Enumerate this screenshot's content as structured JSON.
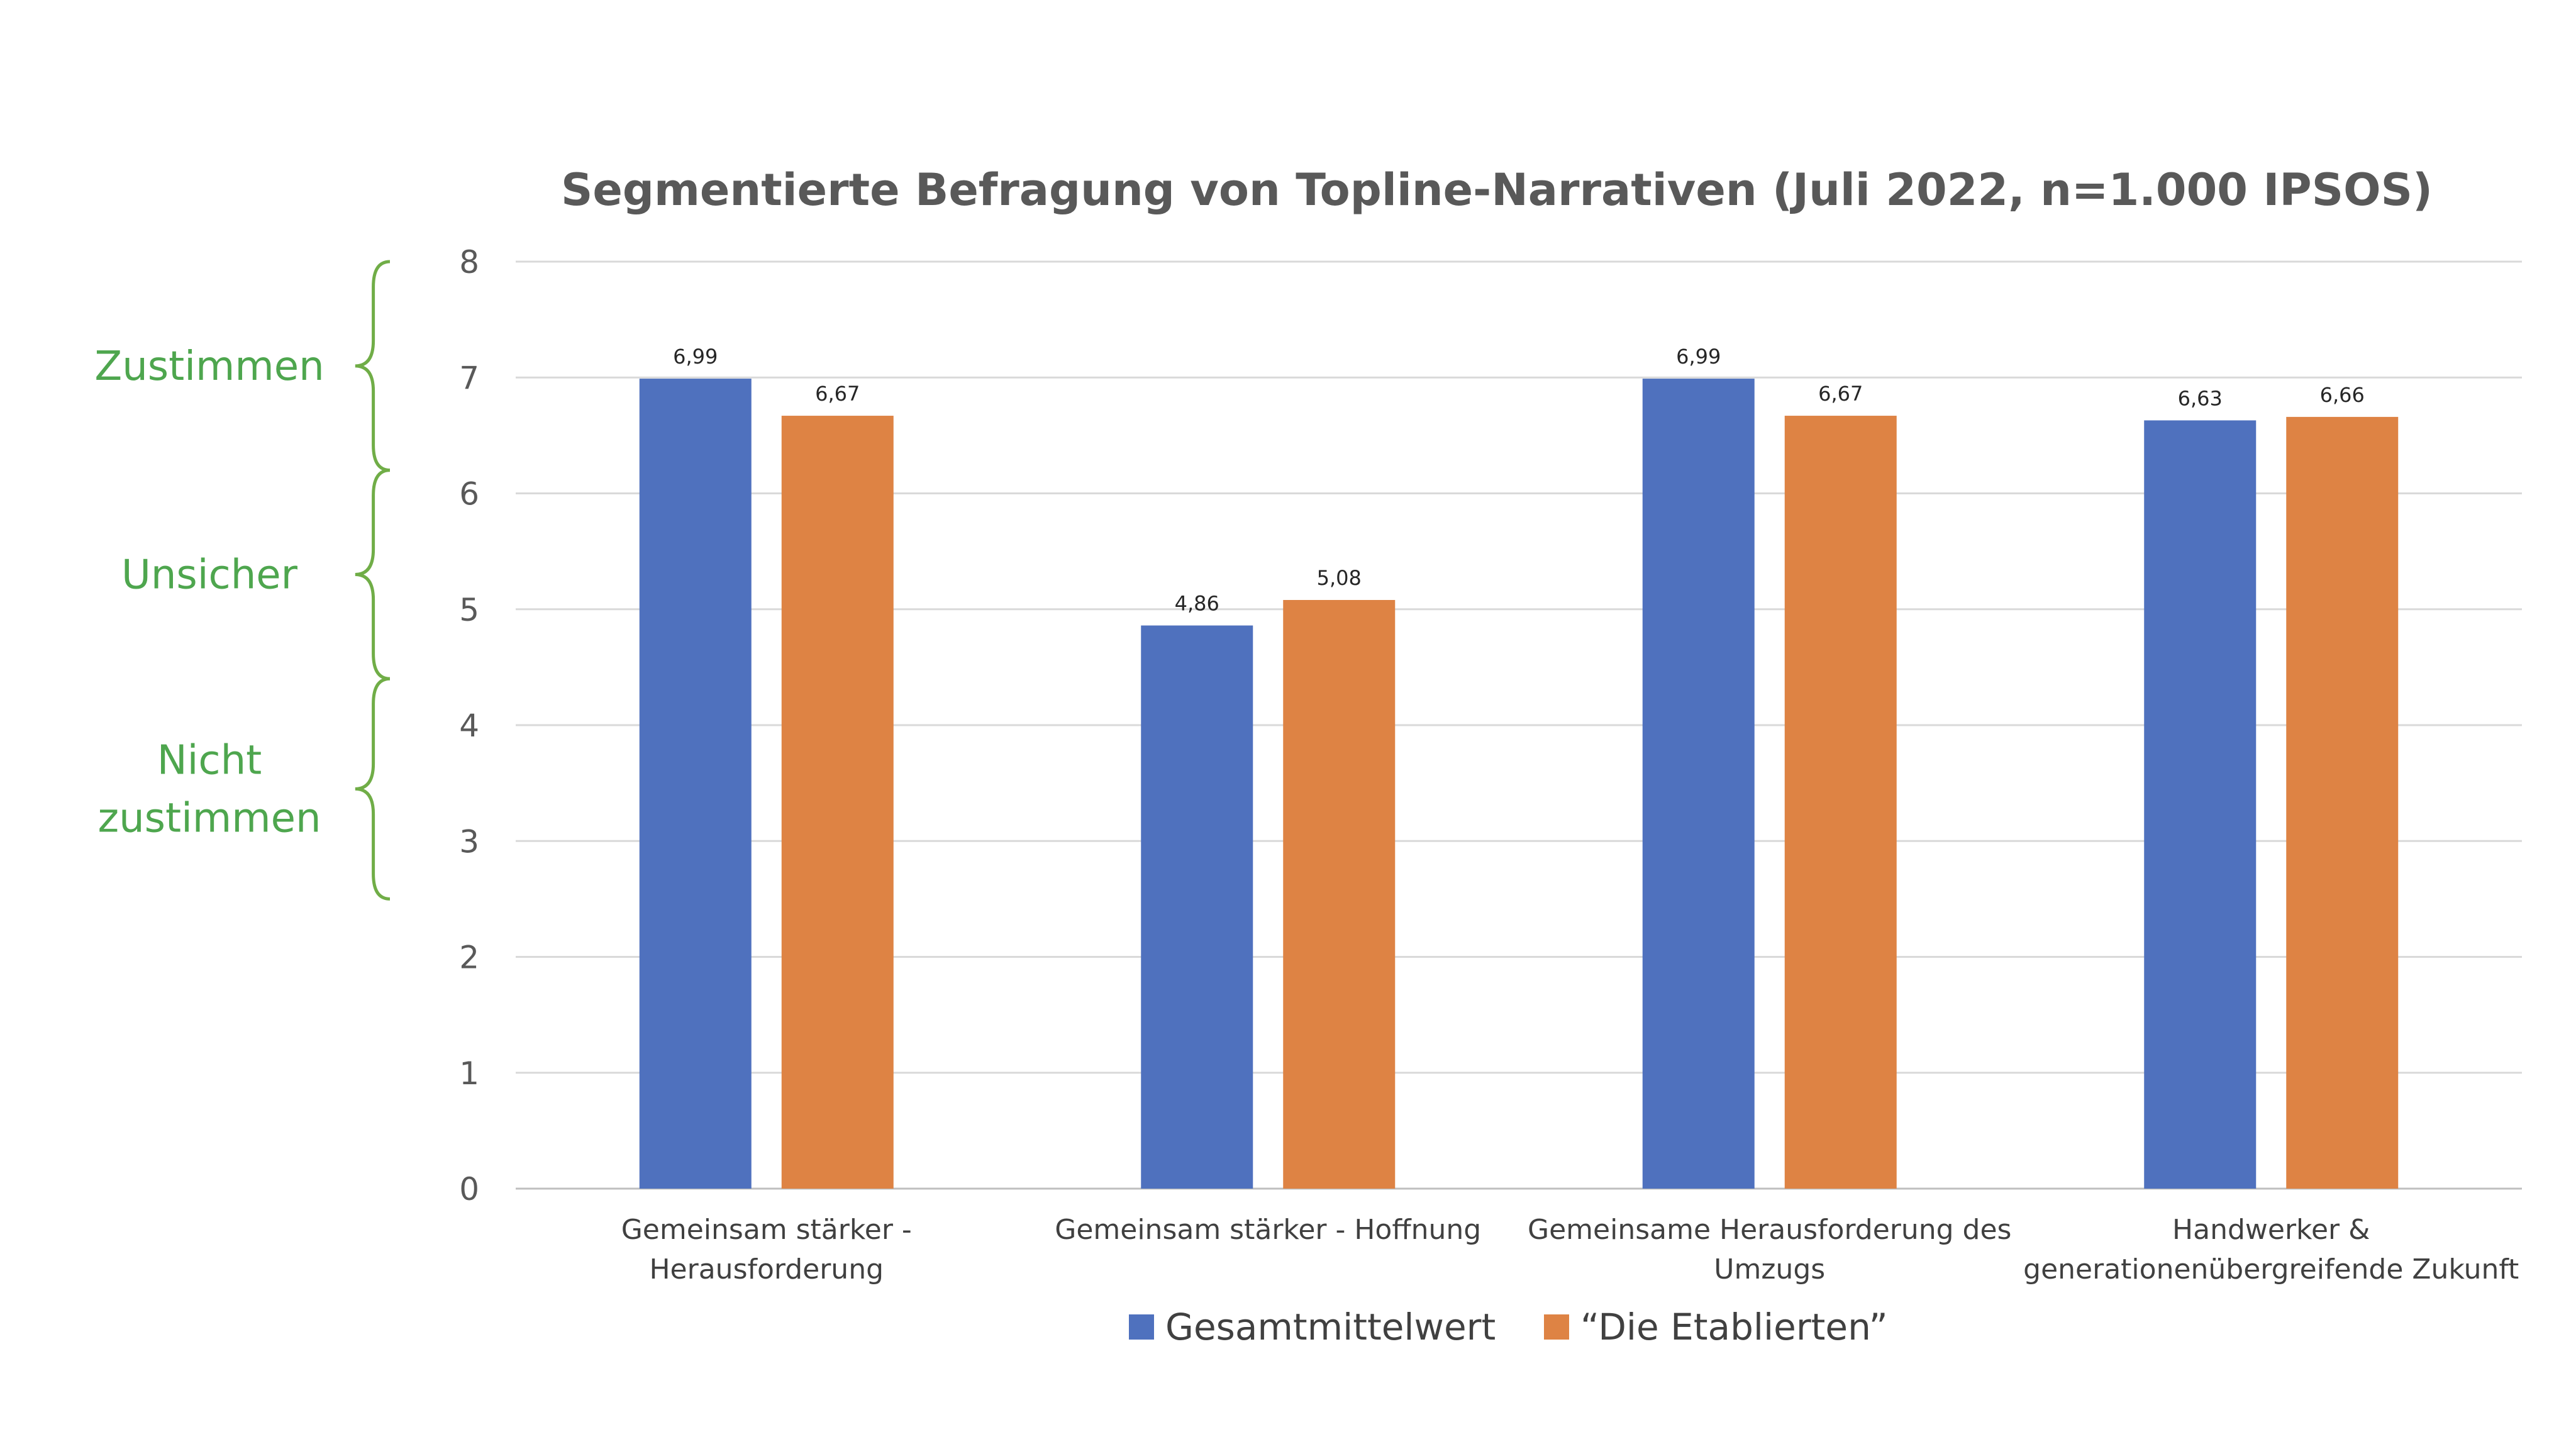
{
  "chart_data": {
    "type": "bar",
    "title": "Segmentierte Befragung von Topline-Narrativen (Juli 2022, n=1.000 IPSOS)",
    "categories": [
      [
        "Gemeinsam stärker -",
        "Herausforderung"
      ],
      [
        "Gemeinsam stärker - Hoffnung"
      ],
      [
        "Gemeinsame Herausforderung des",
        "Umzugs"
      ],
      [
        "Handwerker &",
        "generationenübergreifende Zukunft"
      ]
    ],
    "series": [
      {
        "name": "Gesamtmittelwert",
        "color": "#4f71be",
        "values": [
          6.99,
          4.86,
          6.99,
          6.63
        ],
        "labels": [
          "6,99",
          "4,86",
          "6,99",
          "6,63"
        ]
      },
      {
        "name": "“Die Etablierten”",
        "color": "#de8344",
        "values": [
          6.67,
          5.08,
          6.67,
          6.66
        ],
        "labels": [
          "6,67",
          "5,08",
          "6,67",
          "6,66"
        ]
      }
    ],
    "ylim": [
      0,
      8
    ],
    "yticks": [
      0,
      1,
      2,
      3,
      4,
      5,
      6,
      7,
      8
    ],
    "grid": true,
    "legend_position": "bottom",
    "zones": [
      {
        "lines": [
          "Zustimmen"
        ],
        "from": 6.2,
        "to": 8
      },
      {
        "lines": [
          "Unsicher"
        ],
        "from": 4.4,
        "to": 6.2
      },
      {
        "lines": [
          "Nicht",
          "zustimmen"
        ],
        "from": 2.5,
        "to": 4.4
      }
    ],
    "zone_color": "#4ea64e",
    "brace_color": "#70ad47"
  }
}
